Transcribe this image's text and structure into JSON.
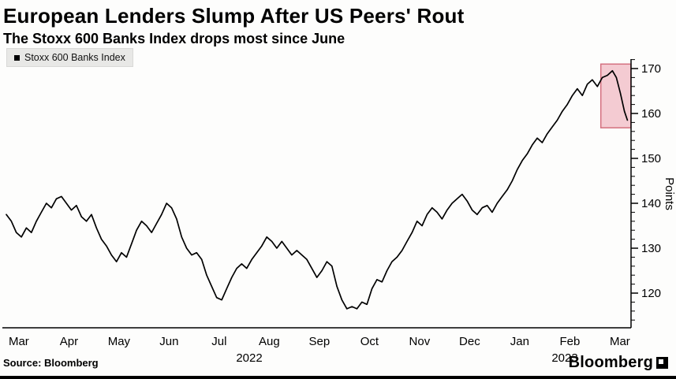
{
  "header": {
    "title": "European Lenders Slump After US Peers' Rout",
    "subtitle": "The Stoxx 600 Banks Index drops most since June"
  },
  "legend": {
    "label": "Stoxx 600 Banks Index",
    "marker_color": "#000000"
  },
  "footer": {
    "source": "Source: Bloomberg",
    "brand": "Bloomberg"
  },
  "chart_data": {
    "type": "line",
    "title": "European Lenders Slump After US Peers' Rout",
    "subtitle": "The Stoxx 600 Banks Index drops most since June",
    "ylabel": "Points",
    "ylim": [
      112,
      172
    ],
    "yticks": [
      120,
      130,
      140,
      150,
      160,
      170
    ],
    "grid": false,
    "legend_position": "top-left",
    "x_month_labels": [
      "Mar",
      "Apr",
      "May",
      "Jun",
      "Jul",
      "Aug",
      "Sep",
      "Oct",
      "Nov",
      "Dec",
      "Jan",
      "Feb",
      "Mar"
    ],
    "year_labels": [
      {
        "label": "2022",
        "position": 4.85
      },
      {
        "label": "2023",
        "position": 11.15
      }
    ],
    "series": [
      {
        "name": "Stoxx 600 Banks Index",
        "color": "#000000",
        "points": [
          [
            0.0,
            137.5
          ],
          [
            0.1,
            136
          ],
          [
            0.2,
            133.5
          ],
          [
            0.3,
            132.5
          ],
          [
            0.4,
            134.5
          ],
          [
            0.5,
            133.5
          ],
          [
            0.6,
            136
          ],
          [
            0.7,
            138
          ],
          [
            0.8,
            140
          ],
          [
            0.9,
            139
          ],
          [
            1.0,
            141
          ],
          [
            1.1,
            141.5
          ],
          [
            1.2,
            140
          ],
          [
            1.3,
            138.5
          ],
          [
            1.4,
            139.5
          ],
          [
            1.5,
            137
          ],
          [
            1.6,
            136
          ],
          [
            1.7,
            137.5
          ],
          [
            1.8,
            134.5
          ],
          [
            1.9,
            132
          ],
          [
            2.0,
            130.5
          ],
          [
            2.1,
            128.5
          ],
          [
            2.2,
            127
          ],
          [
            2.3,
            129
          ],
          [
            2.4,
            128
          ],
          [
            2.5,
            131
          ],
          [
            2.6,
            134
          ],
          [
            2.7,
            136
          ],
          [
            2.8,
            135
          ],
          [
            2.9,
            133.5
          ],
          [
            3.0,
            135.5
          ],
          [
            3.1,
            137.5
          ],
          [
            3.2,
            140
          ],
          [
            3.3,
            139
          ],
          [
            3.4,
            136.5
          ],
          [
            3.5,
            132.5
          ],
          [
            3.6,
            130
          ],
          [
            3.7,
            128.5
          ],
          [
            3.8,
            129
          ],
          [
            3.9,
            127.5
          ],
          [
            4.0,
            124
          ],
          [
            4.1,
            121.5
          ],
          [
            4.2,
            119
          ],
          [
            4.3,
            118.5
          ],
          [
            4.4,
            121
          ],
          [
            4.5,
            123.5
          ],
          [
            4.6,
            125.5
          ],
          [
            4.7,
            126.5
          ],
          [
            4.8,
            125.5
          ],
          [
            4.9,
            127.5
          ],
          [
            5.0,
            129
          ],
          [
            5.1,
            130.5
          ],
          [
            5.2,
            132.5
          ],
          [
            5.3,
            131.5
          ],
          [
            5.4,
            130
          ],
          [
            5.5,
            131.5
          ],
          [
            5.6,
            130
          ],
          [
            5.7,
            128.5
          ],
          [
            5.8,
            129.5
          ],
          [
            5.9,
            128.5
          ],
          [
            6.0,
            127.5
          ],
          [
            6.1,
            125.5
          ],
          [
            6.2,
            123.5
          ],
          [
            6.3,
            125
          ],
          [
            6.4,
            127
          ],
          [
            6.5,
            126
          ],
          [
            6.6,
            121.5
          ],
          [
            6.7,
            118.5
          ],
          [
            6.8,
            116.5
          ],
          [
            6.9,
            117
          ],
          [
            7.0,
            116.5
          ],
          [
            7.1,
            118
          ],
          [
            7.2,
            117.5
          ],
          [
            7.3,
            121
          ],
          [
            7.4,
            123
          ],
          [
            7.5,
            122.5
          ],
          [
            7.6,
            125
          ],
          [
            7.7,
            127
          ],
          [
            7.8,
            128
          ],
          [
            7.9,
            129.5
          ],
          [
            8.0,
            131.5
          ],
          [
            8.1,
            133.5
          ],
          [
            8.2,
            136
          ],
          [
            8.3,
            135
          ],
          [
            8.4,
            137.5
          ],
          [
            8.5,
            139
          ],
          [
            8.6,
            138
          ],
          [
            8.7,
            136.5
          ],
          [
            8.8,
            138.5
          ],
          [
            8.9,
            140
          ],
          [
            9.0,
            141
          ],
          [
            9.1,
            142
          ],
          [
            9.2,
            140.5
          ],
          [
            9.3,
            138.5
          ],
          [
            9.4,
            137.5
          ],
          [
            9.5,
            139
          ],
          [
            9.6,
            139.5
          ],
          [
            9.7,
            138
          ],
          [
            9.8,
            140
          ],
          [
            9.9,
            141.5
          ],
          [
            10.0,
            143
          ],
          [
            10.1,
            145
          ],
          [
            10.2,
            147.5
          ],
          [
            10.3,
            149.5
          ],
          [
            10.4,
            151
          ],
          [
            10.5,
            153
          ],
          [
            10.6,
            154.5
          ],
          [
            10.7,
            153.5
          ],
          [
            10.8,
            155.5
          ],
          [
            10.9,
            157
          ],
          [
            11.0,
            158.5
          ],
          [
            11.1,
            160.5
          ],
          [
            11.2,
            162
          ],
          [
            11.3,
            164
          ],
          [
            11.4,
            165.5
          ],
          [
            11.5,
            164
          ],
          [
            11.6,
            166.5
          ],
          [
            11.7,
            167.5
          ],
          [
            11.8,
            166
          ],
          [
            11.9,
            168
          ],
          [
            12.0,
            168.5
          ],
          [
            12.1,
            169.5
          ],
          [
            12.18,
            168
          ],
          [
            12.26,
            164.5
          ],
          [
            12.34,
            160.5
          ],
          [
            12.4,
            158.5
          ]
        ]
      }
    ],
    "highlight": {
      "x0": 11.87,
      "x1": 12.47,
      "y0": 156.8,
      "y1": 171,
      "fill": "#eb9aa8",
      "stroke": "#d4707f"
    }
  }
}
